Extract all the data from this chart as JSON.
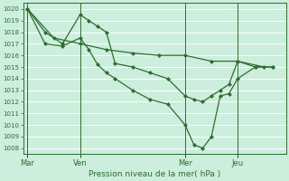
{
  "background_color": "#cceedd",
  "grid_color": "#ffffff",
  "line_color": "#2d6e2d",
  "xlabel": "Pression niveau de la mer( hPa )",
  "ylim": [
    1007.5,
    1020.5
  ],
  "yticks": [
    1008,
    1009,
    1010,
    1011,
    1012,
    1013,
    1014,
    1015,
    1016,
    1017,
    1018,
    1019,
    1020
  ],
  "xtick_labels": [
    "Mar",
    "Ven",
    "Mer",
    "Jeu"
  ],
  "xtick_positions": [
    0,
    24,
    72,
    96
  ],
  "vline_positions": [
    0,
    24,
    72,
    96
  ],
  "xlim": [
    -2,
    118
  ],
  "series1": {
    "x": [
      0,
      8,
      16,
      24,
      28,
      32,
      36,
      40,
      48,
      56,
      64,
      72,
      76,
      80,
      84,
      88,
      92,
      96,
      104,
      112
    ],
    "y": [
      1020,
      1018,
      1017,
      1019.5,
      1019,
      1018.5,
      1018,
      1015.3,
      1015,
      1014.5,
      1014,
      1012.5,
      1012.2,
      1012,
      1012.5,
      1013,
      1013.5,
      1015.5,
      1015,
      1015
    ]
  },
  "series2": {
    "x": [
      0,
      8,
      16,
      24,
      28,
      32,
      36,
      40,
      48,
      56,
      64,
      72,
      76,
      80,
      84,
      88,
      92,
      96,
      104,
      112
    ],
    "y": [
      1020,
      1017,
      1016.8,
      1017.5,
      1016.5,
      1015.2,
      1014.5,
      1014,
      1013,
      1012.2,
      1011.8,
      1010,
      1008.3,
      1008,
      1009,
      1012.5,
      1012.7,
      1014,
      1015,
      1015
    ]
  },
  "series3": {
    "x": [
      0,
      12,
      24,
      36,
      48,
      60,
      72,
      84,
      96,
      108
    ],
    "y": [
      1020,
      1017.5,
      1017,
      1016.5,
      1016.2,
      1016,
      1016,
      1015.5,
      1015.5,
      1015
    ]
  }
}
